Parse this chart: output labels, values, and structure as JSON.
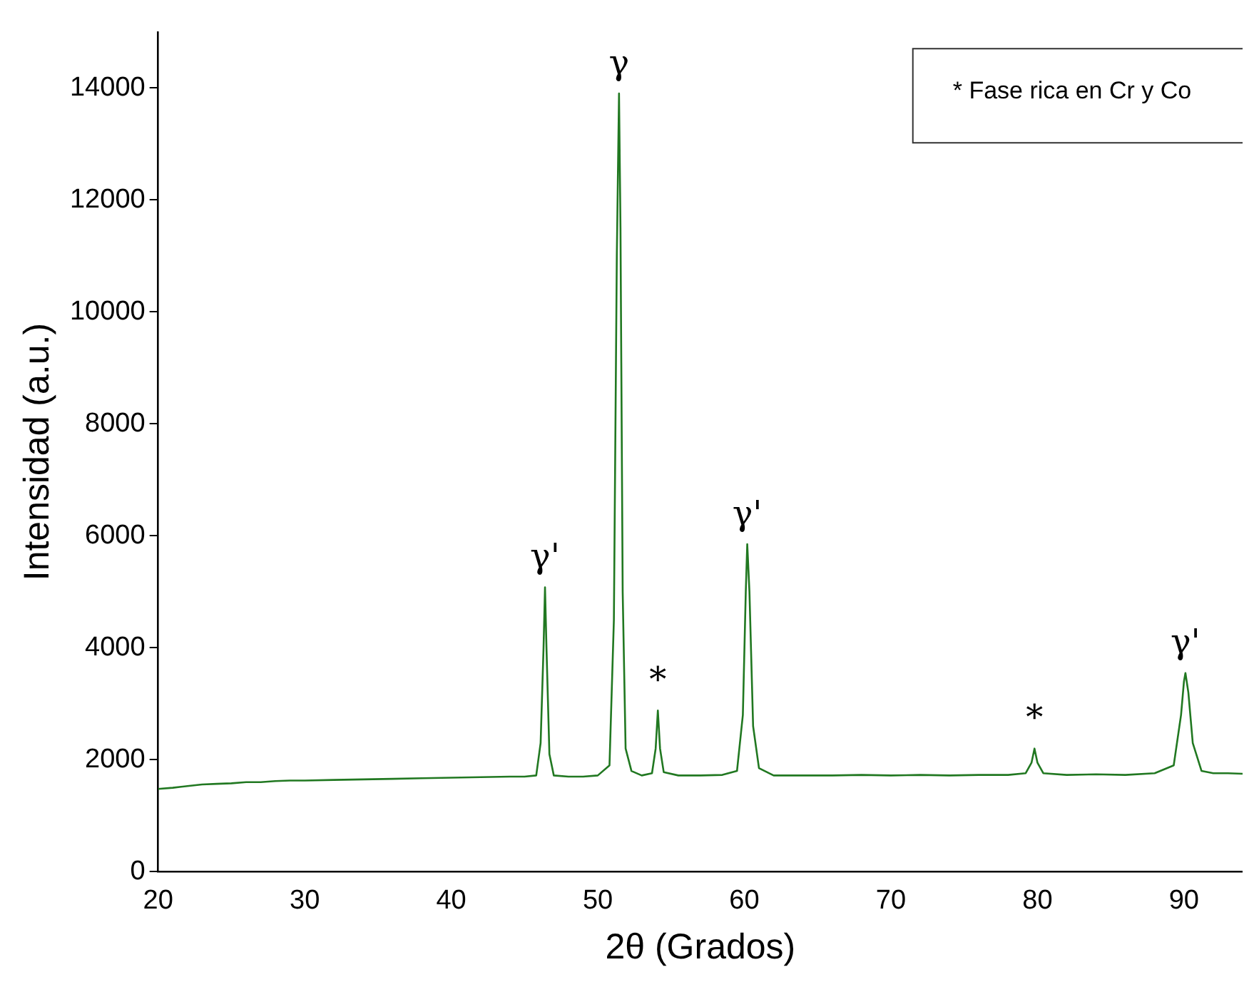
{
  "chart_data": {
    "type": "line",
    "xlabel": "2θ (Grados)",
    "ylabel": "Intensidad (a.u.)",
    "x": [
      20,
      21,
      22,
      23,
      24,
      25,
      26,
      27,
      28,
      29,
      30,
      32,
      34,
      36,
      38,
      40,
      42,
      44,
      45,
      45.8,
      46.1,
      46.3,
      46.4,
      46.5,
      46.7,
      47,
      48,
      49,
      50,
      50.8,
      51.1,
      51.3,
      51.45,
      51.55,
      51.7,
      51.9,
      52.3,
      53,
      53.7,
      53.95,
      54.1,
      54.25,
      54.5,
      55.5,
      57,
      58.5,
      59.5,
      59.9,
      60.1,
      60.2,
      60.35,
      60.6,
      61,
      62,
      64,
      66,
      68,
      70,
      72,
      74,
      76,
      78,
      79.2,
      79.6,
      79.8,
      80,
      80.4,
      82,
      84,
      86,
      88,
      89.3,
      89.8,
      90,
      90.1,
      90.3,
      90.6,
      91.2,
      92,
      93,
      94
    ],
    "series": [
      {
        "color": "#217821",
        "values": [
          1480,
          1500,
          1530,
          1560,
          1570,
          1580,
          1600,
          1600,
          1620,
          1630,
          1630,
          1640,
          1650,
          1660,
          1670,
          1680,
          1690,
          1700,
          1700,
          1720,
          2300,
          4000,
          5080,
          4000,
          2100,
          1720,
          1700,
          1700,
          1720,
          1900,
          4500,
          11000,
          13900,
          11500,
          5000,
          2200,
          1800,
          1720,
          1760,
          2200,
          2880,
          2200,
          1780,
          1720,
          1720,
          1730,
          1800,
          2800,
          5000,
          5850,
          5000,
          2600,
          1850,
          1720,
          1720,
          1720,
          1730,
          1720,
          1730,
          1720,
          1730,
          1730,
          1760,
          1950,
          2200,
          1950,
          1760,
          1730,
          1740,
          1730,
          1760,
          1900,
          2800,
          3400,
          3550,
          3200,
          2300,
          1800,
          1760,
          1760,
          1750
        ]
      }
    ],
    "xlim": [
      20,
      94
    ],
    "xticks": [
      20,
      30,
      40,
      50,
      60,
      70,
      80,
      90
    ],
    "ylim": [
      0,
      15000
    ],
    "yticks": [
      0,
      2000,
      4000,
      6000,
      8000,
      10000,
      12000,
      14000
    ],
    "grid": false,
    "legend": false,
    "marker": "none",
    "line_style": "solid",
    "annotations": [
      {
        "text": "γ'",
        "x": 46.4,
        "y": 5080
      },
      {
        "text": "γ",
        "x": 51.45,
        "y": 13900
      },
      {
        "text": "*",
        "x": 54.1,
        "y": 2880
      },
      {
        "text": "γ'",
        "x": 60.2,
        "y": 5850
      },
      {
        "text": "*",
        "x": 79.8,
        "y": 2200
      },
      {
        "text": "γ'",
        "x": 90.1,
        "y": 3550
      },
      "* Fase rica en Cr y Co"
    ]
  }
}
